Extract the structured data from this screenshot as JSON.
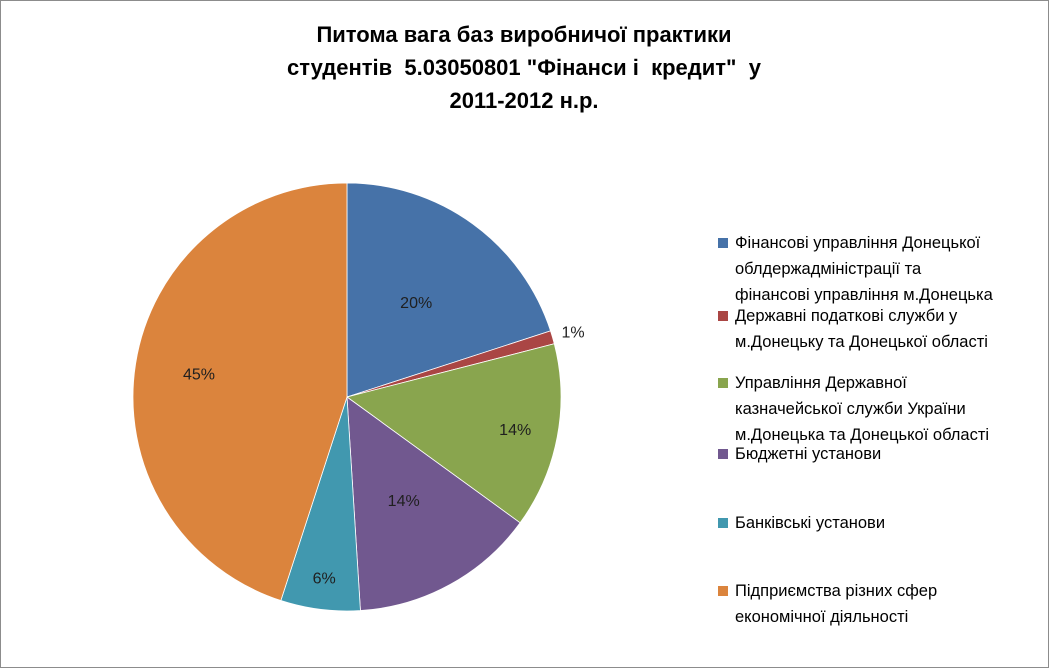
{
  "title_lines": [
    "Питома вага баз виробничої практики",
    "студентів  5.03050801 \"Фінанси і  кредит\"  у",
    "2011-2012 н.р."
  ],
  "chart_data": {
    "type": "pie",
    "title": "Питома вага баз виробничої практики студентів  5.03050801 \"Фінанси і  кредит\"  у 2011-2012 н.р.",
    "categories": [
      "Фінансові управління Донецької облдержадміністрації та фінансові управління м.Донецька",
      "Державні податкові служби у м.Донецьку та Донецької області",
      "Управління Державної казначейської служби України м.Донецька та Донецької області",
      "Бюджетні установи",
      "Банківські установи",
      "Підприємства різних сфер економічної діяльності"
    ],
    "values": [
      20,
      1,
      14,
      14,
      6,
      45
    ],
    "data_labels": [
      "20%",
      "1%",
      "14%",
      "14%",
      "6%",
      "45%"
    ],
    "colors": [
      "#4672A8",
      "#AA4644",
      "#89A54E",
      "#71588F",
      "#4198AF",
      "#DB843D"
    ],
    "legend": {
      "position": "right",
      "items": [
        [
          "Фінансові управління Донецької",
          "облдержадміністрації та",
          "фінансові управління м.Донецька"
        ],
        [
          "Державні податкові служби у",
          "м.Донецьку та Донецької області"
        ],
        [
          "Управління Державної",
          "казначейської служби України",
          "м.Донецька та Донецької області"
        ],
        [
          "Бюджетні установи"
        ],
        [
          "Банківські установи"
        ],
        [
          "Підприємства різних сфер",
          "економічної діяльності"
        ]
      ]
    }
  }
}
